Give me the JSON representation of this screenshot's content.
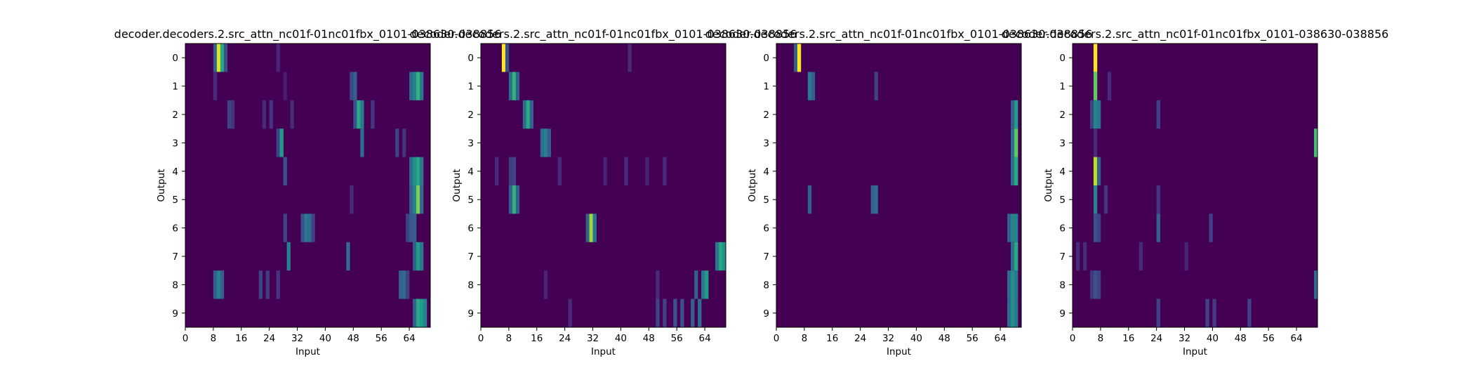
{
  "colors": {
    "background": "#ffffff",
    "frame": "#000000",
    "colormap": [
      "#440154",
      "#482878",
      "#3e4989",
      "#31688e",
      "#26828e",
      "#1f9e89",
      "#35b779",
      "#6ece58",
      "#b5de2b",
      "#fde725"
    ]
  },
  "chart_data": [
    {
      "type": "heatmap",
      "title": "decoder.decoders.2.src_attn_nc01f-01nc01fbx_0101-038630-038856",
      "xlabel": "Input",
      "ylabel": "Output",
      "x_ticks": [
        0,
        8,
        16,
        24,
        32,
        40,
        48,
        56,
        64
      ],
      "y_ticks": [
        0,
        1,
        2,
        3,
        4,
        5,
        6,
        7,
        8,
        9
      ],
      "xlim": [
        0,
        70
      ],
      "ylim": [
        9.5,
        -0.5
      ],
      "grid": false,
      "colormap": "viridis",
      "value_range": [
        0,
        1
      ],
      "rows": 10,
      "cols": 70,
      "peaks": [
        [
          [
            8,
            0.3
          ],
          [
            9,
            0.95
          ],
          [
            10,
            0.6
          ],
          [
            11,
            0.25
          ],
          [
            26,
            0.1
          ]
        ],
        [
          [
            8,
            0.12
          ],
          [
            28,
            0.08
          ],
          [
            47,
            0.22
          ],
          [
            48,
            0.3
          ],
          [
            64,
            0.35
          ],
          [
            65,
            0.45
          ],
          [
            66,
            0.65
          ],
          [
            67,
            0.4
          ]
        ],
        [
          [
            12,
            0.2
          ],
          [
            13,
            0.15
          ],
          [
            22,
            0.12
          ],
          [
            24,
            0.15
          ],
          [
            30,
            0.12
          ],
          [
            48,
            0.25
          ],
          [
            49,
            0.6
          ],
          [
            50,
            0.4
          ],
          [
            53,
            0.15
          ]
        ],
        [
          [
            26,
            0.2
          ],
          [
            27,
            0.55
          ],
          [
            50,
            0.35
          ],
          [
            60,
            0.2
          ],
          [
            62,
            0.15
          ]
        ],
        [
          [
            28,
            0.25
          ],
          [
            64,
            0.35
          ],
          [
            65,
            0.5
          ],
          [
            66,
            0.6
          ],
          [
            67,
            0.4
          ]
        ],
        [
          [
            47,
            0.12
          ],
          [
            64,
            0.3
          ],
          [
            65,
            0.45
          ],
          [
            66,
            0.8
          ],
          [
            67,
            0.35
          ]
        ],
        [
          [
            28,
            0.2
          ],
          [
            33,
            0.25
          ],
          [
            34,
            0.4
          ],
          [
            35,
            0.35
          ],
          [
            36,
            0.2
          ],
          [
            63,
            0.2
          ],
          [
            64,
            0.28
          ],
          [
            65,
            0.3
          ]
        ],
        [
          [
            29,
            0.45
          ],
          [
            46,
            0.35
          ],
          [
            65,
            0.3
          ],
          [
            66,
            0.55
          ],
          [
            67,
            0.4
          ]
        ],
        [
          [
            8,
            0.3
          ],
          [
            9,
            0.45
          ],
          [
            10,
            0.3
          ],
          [
            21,
            0.2
          ],
          [
            23,
            0.18
          ],
          [
            26,
            0.15
          ],
          [
            61,
            0.3
          ],
          [
            62,
            0.35
          ],
          [
            63,
            0.2
          ]
        ],
        [
          [
            65,
            0.3
          ],
          [
            66,
            0.6
          ],
          [
            67,
            0.55
          ],
          [
            68,
            0.45
          ]
        ]
      ]
    },
    {
      "type": "heatmap",
      "title": "decoder.decoders.2.src_attn_nc01f-01nc01fbx_0101-038630-038856",
      "xlabel": "Input",
      "ylabel": "Output",
      "x_ticks": [
        0,
        8,
        16,
        24,
        32,
        40,
        48,
        56,
        64
      ],
      "y_ticks": [
        0,
        1,
        2,
        3,
        4,
        5,
        6,
        7,
        8,
        9
      ],
      "xlim": [
        0,
        70
      ],
      "ylim": [
        9.5,
        -0.5
      ],
      "grid": false,
      "colormap": "viridis",
      "value_range": [
        0,
        1
      ],
      "rows": 10,
      "cols": 70,
      "peaks": [
        [
          [
            6,
            1.0
          ],
          [
            7,
            0.25
          ],
          [
            42,
            0.12
          ]
        ],
        [
          [
            8,
            0.35
          ],
          [
            9,
            0.65
          ],
          [
            10,
            0.3
          ]
        ],
        [
          [
            12,
            0.35
          ],
          [
            13,
            0.6
          ],
          [
            14,
            0.3
          ]
        ],
        [
          [
            17,
            0.35
          ],
          [
            18,
            0.45
          ],
          [
            19,
            0.3
          ]
        ],
        [
          [
            4,
            0.12
          ],
          [
            8,
            0.18
          ],
          [
            9,
            0.2
          ],
          [
            22,
            0.12
          ],
          [
            35,
            0.1
          ],
          [
            41,
            0.12
          ],
          [
            47,
            0.1
          ],
          [
            52,
            0.12
          ]
        ],
        [
          [
            8,
            0.3
          ],
          [
            9,
            0.65
          ],
          [
            10,
            0.3
          ]
        ],
        [
          [
            30,
            0.3
          ],
          [
            31,
            0.85
          ],
          [
            32,
            0.4
          ]
        ],
        [
          [
            67,
            0.4
          ],
          [
            68,
            0.6
          ],
          [
            69,
            0.5
          ]
        ],
        [
          [
            18,
            0.1
          ],
          [
            50,
            0.12
          ],
          [
            61,
            0.3
          ],
          [
            63,
            0.4
          ],
          [
            64,
            0.55
          ]
        ],
        [
          [
            25,
            0.12
          ],
          [
            50,
            0.2
          ],
          [
            52,
            0.2
          ],
          [
            55,
            0.25
          ],
          [
            57,
            0.25
          ],
          [
            60,
            0.3
          ],
          [
            62,
            0.35
          ]
        ]
      ]
    },
    {
      "type": "heatmap",
      "title": "decoder.decoders.2.src_attn_nc01f-01nc01fbx_0101-038630-038856",
      "xlabel": "Input",
      "ylabel": "Output",
      "x_ticks": [
        0,
        8,
        16,
        24,
        32,
        40,
        48,
        56,
        64
      ],
      "y_ticks": [
        0,
        1,
        2,
        3,
        4,
        5,
        6,
        7,
        8,
        9
      ],
      "xlim": [
        0,
        70
      ],
      "ylim": [
        9.5,
        -0.5
      ],
      "grid": false,
      "colormap": "viridis",
      "value_range": [
        0,
        1
      ],
      "rows": 10,
      "cols": 70,
      "peaks": [
        [
          [
            5,
            0.3
          ],
          [
            6,
            1.0
          ]
        ],
        [
          [
            9,
            0.4
          ],
          [
            10,
            0.3
          ],
          [
            28,
            0.2
          ]
        ],
        [
          [
            67,
            0.3
          ],
          [
            68,
            0.55
          ]
        ],
        [
          [
            67,
            0.35
          ],
          [
            68,
            0.75
          ]
        ],
        [
          [
            67,
            0.35
          ],
          [
            68,
            0.6
          ]
        ],
        [
          [
            9,
            0.3
          ],
          [
            27,
            0.3
          ],
          [
            28,
            0.35
          ]
        ],
        [
          [
            66,
            0.3
          ],
          [
            67,
            0.45
          ],
          [
            68,
            0.45
          ]
        ],
        [
          [
            67,
            0.35
          ],
          [
            68,
            0.6
          ]
        ],
        [
          [
            66,
            0.35
          ],
          [
            67,
            0.5
          ],
          [
            68,
            0.4
          ]
        ],
        [
          [
            66,
            0.35
          ],
          [
            67,
            0.5
          ],
          [
            68,
            0.4
          ]
        ]
      ]
    },
    {
      "type": "heatmap",
      "title": "decoder.decoders.2.src_attn_nc01f-01nc01fbx_0101-038630-038856",
      "xlabel": "Input",
      "ylabel": "Output",
      "x_ticks": [
        0,
        8,
        16,
        24,
        32,
        40,
        48,
        56,
        64
      ],
      "y_ticks": [
        0,
        1,
        2,
        3,
        4,
        5,
        6,
        7,
        8,
        9
      ],
      "xlim": [
        0,
        70
      ],
      "ylim": [
        9.5,
        -0.5
      ],
      "grid": false,
      "colormap": "viridis",
      "value_range": [
        0,
        1
      ],
      "rows": 10,
      "cols": 70,
      "peaks": [
        [
          [
            6,
            1.0
          ]
        ],
        [
          [
            6,
            0.75
          ],
          [
            10,
            0.12
          ]
        ],
        [
          [
            5,
            0.2
          ],
          [
            6,
            0.45
          ],
          [
            7,
            0.4
          ],
          [
            24,
            0.2
          ]
        ],
        [
          [
            6,
            0.12
          ],
          [
            69,
            0.7
          ]
        ],
        [
          [
            6,
            0.9
          ],
          [
            7,
            0.3
          ]
        ],
        [
          [
            6,
            0.45
          ],
          [
            9,
            0.15
          ],
          [
            24,
            0.15
          ]
        ],
        [
          [
            6,
            0.25
          ],
          [
            7,
            0.2
          ],
          [
            24,
            0.3
          ],
          [
            39,
            0.2
          ]
        ],
        [
          [
            1,
            0.12
          ],
          [
            3,
            0.12
          ],
          [
            19,
            0.12
          ],
          [
            32,
            0.1
          ]
        ],
        [
          [
            5,
            0.15
          ],
          [
            6,
            0.25
          ],
          [
            7,
            0.2
          ],
          [
            69,
            0.35
          ]
        ],
        [
          [
            24,
            0.2
          ],
          [
            38,
            0.2
          ],
          [
            40,
            0.18
          ],
          [
            50,
            0.2
          ]
        ]
      ]
    }
  ]
}
